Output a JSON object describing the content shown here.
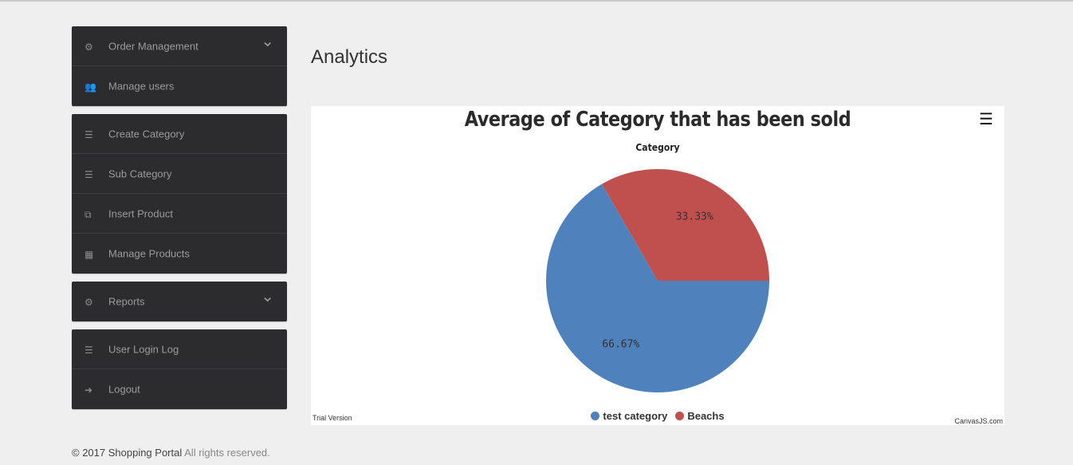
{
  "sidebar": {
    "groups": [
      {
        "items": [
          {
            "label": "Order Management",
            "icon": "gear-icon",
            "glyph": "⚙",
            "chevron": true
          },
          {
            "label": "Manage users",
            "icon": "users-icon",
            "glyph": "👥",
            "chevron": false
          }
        ]
      },
      {
        "items": [
          {
            "label": "Create Category",
            "icon": "list-icon",
            "glyph": "☰",
            "chevron": false
          },
          {
            "label": "Sub Category",
            "icon": "list-icon",
            "glyph": "☰",
            "chevron": false
          },
          {
            "label": "Insert Product",
            "icon": "copy-icon",
            "glyph": "⧉",
            "chevron": false
          },
          {
            "label": "Manage Products",
            "icon": "table-icon",
            "glyph": "▦",
            "chevron": false
          }
        ]
      },
      {
        "items": [
          {
            "label": "Reports",
            "icon": "gear-icon",
            "glyph": "⚙",
            "chevron": true
          }
        ]
      },
      {
        "items": [
          {
            "label": "User Login Log",
            "icon": "list-icon",
            "glyph": "☰",
            "chevron": false
          },
          {
            "label": "Logout",
            "icon": "sign-out-icon",
            "glyph": "➜",
            "chevron": false
          }
        ]
      }
    ]
  },
  "main": {
    "title": "Analytics"
  },
  "chart_data": {
    "type": "pie",
    "title": "Average of Category that has been sold",
    "subtitle": "Category",
    "slices": [
      {
        "name": "test category",
        "value": 66.67,
        "label": "66.67%",
        "color": "#4f81bc"
      },
      {
        "name": "Beachs",
        "value": 33.33,
        "label": "33.33%",
        "color": "#c0504e"
      }
    ],
    "legend_placement": "bottom",
    "watermark_left": "Trial Version",
    "watermark_right": "CanvasJS.com"
  },
  "footer": {
    "copyright": "© 2017 Shopping Portal",
    "rights": " All rights reserved."
  }
}
